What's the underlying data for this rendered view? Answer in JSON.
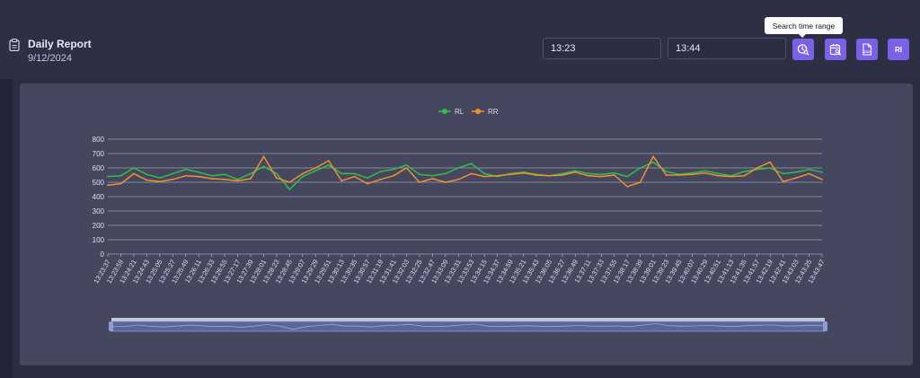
{
  "header": {
    "title": "Daily Report",
    "date": "9/12/2024",
    "start_time": "13:23",
    "end_time": "13:44",
    "tooltip": "Search time range",
    "buttons": {
      "search_icon": "clock-search-icon",
      "calendar_icon": "calendar-search-icon",
      "csv_icon": "csv-file-icon",
      "ri_label": "RI"
    }
  },
  "colors": {
    "accent": "#7b61e8",
    "rl": "#2fbf4d",
    "rr": "#f0902f",
    "panel": "#44475e"
  },
  "chart_data": {
    "type": "line",
    "legend_position": "top-center",
    "grid": true,
    "ylim": [
      0,
      800
    ],
    "yticks": [
      0,
      100,
      200,
      300,
      400,
      500,
      600,
      700,
      800
    ],
    "x_labels": [
      "13:23:37",
      "13:23:59",
      "13:24:21",
      "13:24:43",
      "13:25:05",
      "13:25:27",
      "13:25:49",
      "13:26:11",
      "13:26:33",
      "13:26:55",
      "13:27:17",
      "13:27:39",
      "13:28:01",
      "13:28:23",
      "13:28:45",
      "13:29:07",
      "13:29:29",
      "13:29:51",
      "13:30:13",
      "13:30:35",
      "13:30:57",
      "13:31:19",
      "13:31:41",
      "13:32:03",
      "13:32:25",
      "13:32:47",
      "13:33:09",
      "13:33:31",
      "13:33:53",
      "13:34:15",
      "13:34:37",
      "13:34:59",
      "13:35:21",
      "13:35:43",
      "13:36:05",
      "13:36:27",
      "13:36:49",
      "13:37:11",
      "13:37:33",
      "13:37:55",
      "13:38:17",
      "13:38:39",
      "13:39:01",
      "13:39:23",
      "13:39:45",
      "13:40:07",
      "13:40:29",
      "13:40:51",
      "13:41:13",
      "13:41:35",
      "13:41:57",
      "13:42:19",
      "13:42:41",
      "13:43:03",
      "13:43:25",
      "13:43:47"
    ],
    "series": [
      {
        "name": "RL",
        "values": [
          540,
          545,
          600,
          555,
          530,
          560,
          590,
          570,
          545,
          555,
          520,
          560,
          610,
          560,
          450,
          540,
          580,
          620,
          560,
          560,
          530,
          575,
          590,
          620,
          555,
          545,
          560,
          600,
          630,
          560,
          540,
          560,
          570,
          555,
          545,
          560,
          580,
          560,
          555,
          565,
          540,
          600,
          640,
          575,
          555,
          565,
          580,
          560,
          545,
          575,
          590,
          600,
          560,
          570,
          590,
          570
        ]
      },
      {
        "name": "RR",
        "values": [
          480,
          490,
          560,
          515,
          505,
          520,
          545,
          540,
          525,
          520,
          510,
          525,
          680,
          530,
          500,
          560,
          600,
          650,
          510,
          540,
          490,
          520,
          545,
          600,
          500,
          525,
          500,
          520,
          560,
          540,
          545,
          555,
          565,
          550,
          545,
          550,
          570,
          545,
          540,
          550,
          470,
          500,
          680,
          550,
          550,
          555,
          565,
          545,
          540,
          545,
          600,
          640,
          505,
          530,
          560,
          520
        ]
      }
    ]
  }
}
